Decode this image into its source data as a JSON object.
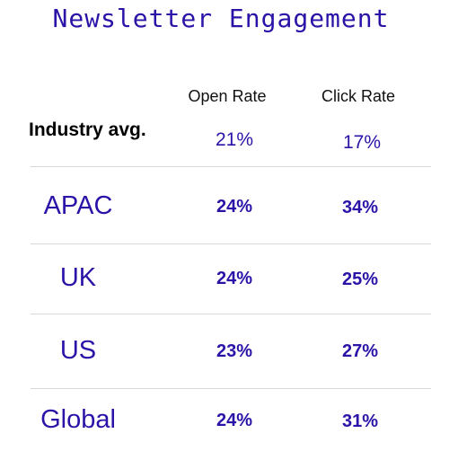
{
  "chart_data": {
    "type": "table",
    "title": "Newsletter Engagement",
    "columns": [
      "Open Rate",
      "Click Rate"
    ],
    "benchmark": {
      "label": "Industry avg.",
      "values": [
        "21%",
        "17%"
      ]
    },
    "rows": [
      {
        "label": "APAC",
        "values": [
          "24%",
          "34%"
        ]
      },
      {
        "label": "UK",
        "values": [
          "24%",
          "25%"
        ]
      },
      {
        "label": "US",
        "values": [
          "23%",
          "27%"
        ]
      },
      {
        "label": "Global",
        "values": [
          "24%",
          "31%"
        ]
      }
    ]
  },
  "colors": {
    "accent": "#2a14a8",
    "divider": "#d9d9d9"
  }
}
